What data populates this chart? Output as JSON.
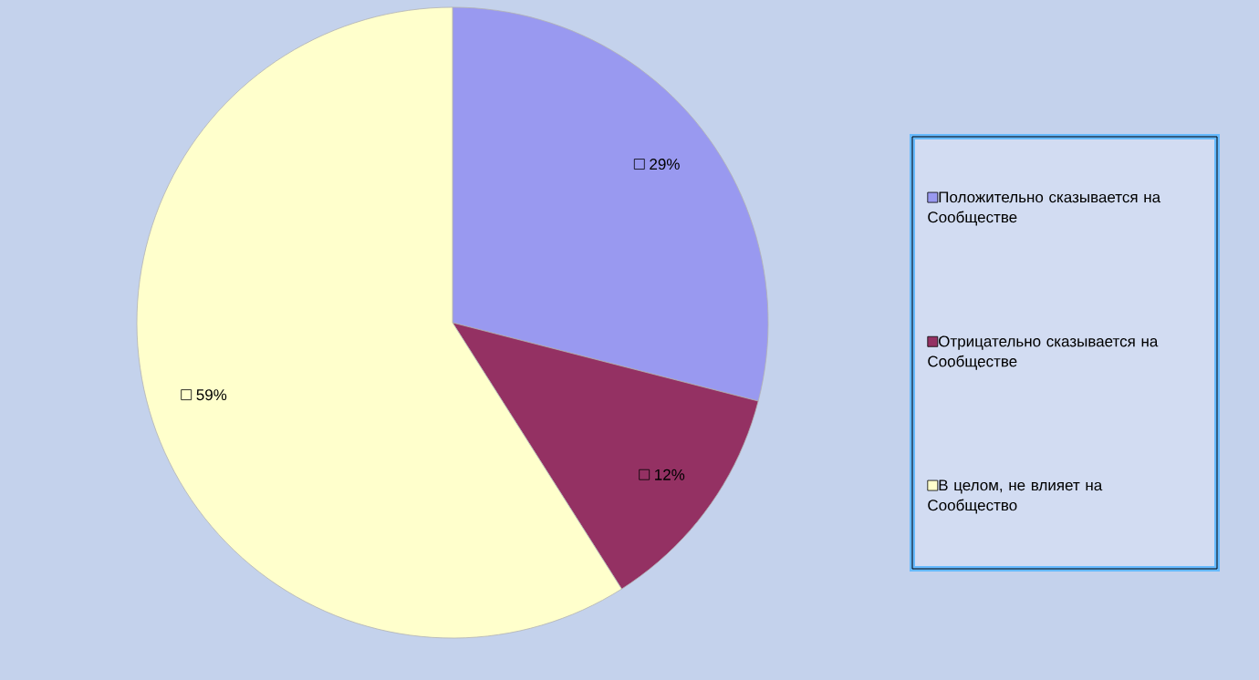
{
  "chart_data": {
    "type": "pie",
    "categories": [
      "Положительно сказывается на Сообществе",
      "Отрицательно сказывается на Сообществе",
      "В целом, не влияет на Сообщество"
    ],
    "values": [
      29,
      12,
      59
    ],
    "value_labels": [
      "29%",
      "12%",
      "59%"
    ],
    "colors": [
      "#9999f0",
      "#943163",
      "#ffffcc"
    ],
    "legend": "right"
  }
}
